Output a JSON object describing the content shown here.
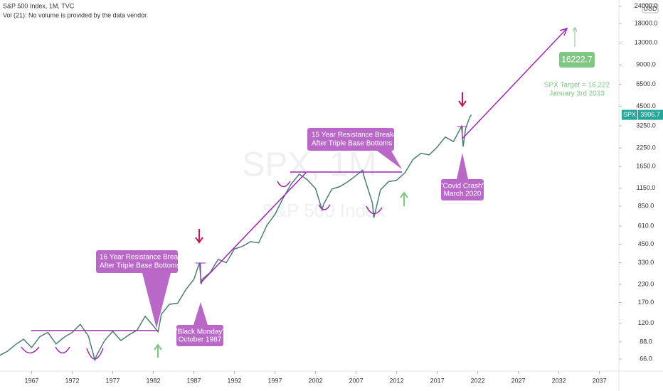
{
  "header": {
    "title": "S&P 500 Index, 1M, TVC",
    "volume_note": "Vol (21): No volume is provided by the data vendor."
  },
  "watermark": {
    "symbol": "SPX, 1M",
    "name": "S&P 500 Index"
  },
  "currency": "USD",
  "price_tag": {
    "symbol": "SPX",
    "value": 3906.7
  },
  "annotations": {
    "breakout_1982": [
      "16 Year Resistance Breakout",
      "After Triple Base Bottoms"
    ],
    "black_monday": [
      "\"Black Monday\"",
      "October 1987"
    ],
    "breakout_2013": [
      "15 Year Resistance Breakout",
      "After Triple Base Bottoms"
    ],
    "covid": [
      "\"Covid Crash\"",
      "March 2020"
    ],
    "target_label": "16222.7",
    "target_text": [
      "SPX Target = 16,222",
      "January 3rd 2033"
    ]
  },
  "chart_data": {
    "type": "line",
    "log_scale": true,
    "color": "#4a7d74",
    "x": [
      1963,
      1964,
      1965,
      1966,
      1967,
      1968,
      1969,
      1970,
      1971,
      1972,
      1973,
      1974,
      1974.8,
      1975,
      1976,
      1977,
      1978,
      1979,
      1980,
      1981,
      1982,
      1982.6,
      1983,
      1984,
      1985,
      1986,
      1987,
      1987.7,
      1987.9,
      1988,
      1989,
      1990,
      1991,
      1992,
      1993,
      1994,
      1995,
      1996,
      1997,
      1998,
      1999,
      2000,
      2001,
      2002,
      2002.8,
      2003,
      2004,
      2005,
      2006,
      2007,
      2007.8,
      2008,
      2009,
      2009.2,
      2010,
      2011,
      2012,
      2013,
      2014,
      2015,
      2016,
      2017,
      2018,
      2019,
      2020,
      2020.2,
      2020.5,
      2021,
      2021.2
    ],
    "values": [
      70,
      75,
      84,
      92,
      80,
      96,
      103,
      85,
      95,
      103,
      118,
      97,
      65,
      70,
      90,
      105,
      90,
      99,
      107,
      135,
      115,
      104,
      140,
      165,
      168,
      210,
      250,
      330,
      230,
      250,
      280,
      350,
      330,
      415,
      435,
      470,
      460,
      615,
      740,
      970,
      1230,
      1450,
      1320,
      1140,
      800,
      880,
      1130,
      1180,
      1280,
      1420,
      1550,
      1380,
      900,
      700,
      1115,
      1280,
      1310,
      1480,
      1850,
      2060,
      2000,
      2280,
      2700,
      2500,
      3230,
      2300,
      3100,
      3750,
      3906.7
    ],
    "xlim": [
      1963.1,
      2039.4
    ],
    "xticks": [
      1967,
      1972,
      1977,
      1982,
      1987,
      1992,
      1997,
      2002,
      2007,
      2012,
      2017,
      2022,
      2027,
      2032,
      2037
    ],
    "ylim": [
      54,
      26630
    ],
    "yticks": [
      {
        "value": 66,
        "label": "66.0"
      },
      {
        "value": 88,
        "label": "88.0"
      },
      {
        "value": 120,
        "label": "120.0"
      },
      {
        "value": 170,
        "label": "170.0"
      },
      {
        "value": 230,
        "label": "230.0"
      },
      {
        "value": 330,
        "label": "330.0"
      },
      {
        "value": 450,
        "label": "450.0"
      },
      {
        "value": 610,
        "label": "610.0"
      },
      {
        "value": 850,
        "label": "850.0"
      },
      {
        "value": 1150,
        "label": "1150.0"
      },
      {
        "value": 1650,
        "label": "1650.0"
      },
      {
        "value": 2250,
        "label": "2250.0"
      },
      {
        "value": 3250,
        "label": "3250.0"
      },
      {
        "value": 4500,
        "label": "4500.0"
      },
      {
        "value": 6500,
        "label": "6500.0"
      },
      {
        "value": 9000,
        "label": "9000.0"
      },
      {
        "value": 13000,
        "label": "13000.0"
      },
      {
        "value": 18000,
        "label": "18000.0"
      },
      {
        "value": 24000,
        "label": "24000.0"
      }
    ]
  }
}
